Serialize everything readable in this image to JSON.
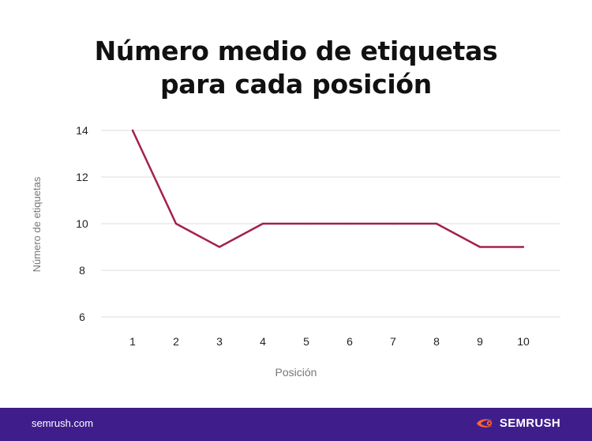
{
  "chart_data": {
    "type": "line",
    "title_lines": [
      "Número medio de etiquetas",
      "para cada posición"
    ],
    "xlabel": "Posición",
    "ylabel": "Número de etiquetas",
    "categories": [
      "1",
      "2",
      "3",
      "4",
      "5",
      "6",
      "7",
      "8",
      "9",
      "10"
    ],
    "series": [
      {
        "values": [
          14,
          10,
          9,
          10,
          10,
          10,
          10,
          10,
          9,
          9
        ]
      }
    ],
    "ylim": [
      6,
      14
    ],
    "yticks": [
      "14",
      "12",
      "10",
      "8",
      "6"
    ],
    "grid": true,
    "line_color": "#a3204f"
  },
  "footer": {
    "url": "semrush.com",
    "brand": "SEMRUSH",
    "brand_icon": "semrush-logo-icon",
    "accent": "#ff642d",
    "background": "#3f1e8c"
  }
}
